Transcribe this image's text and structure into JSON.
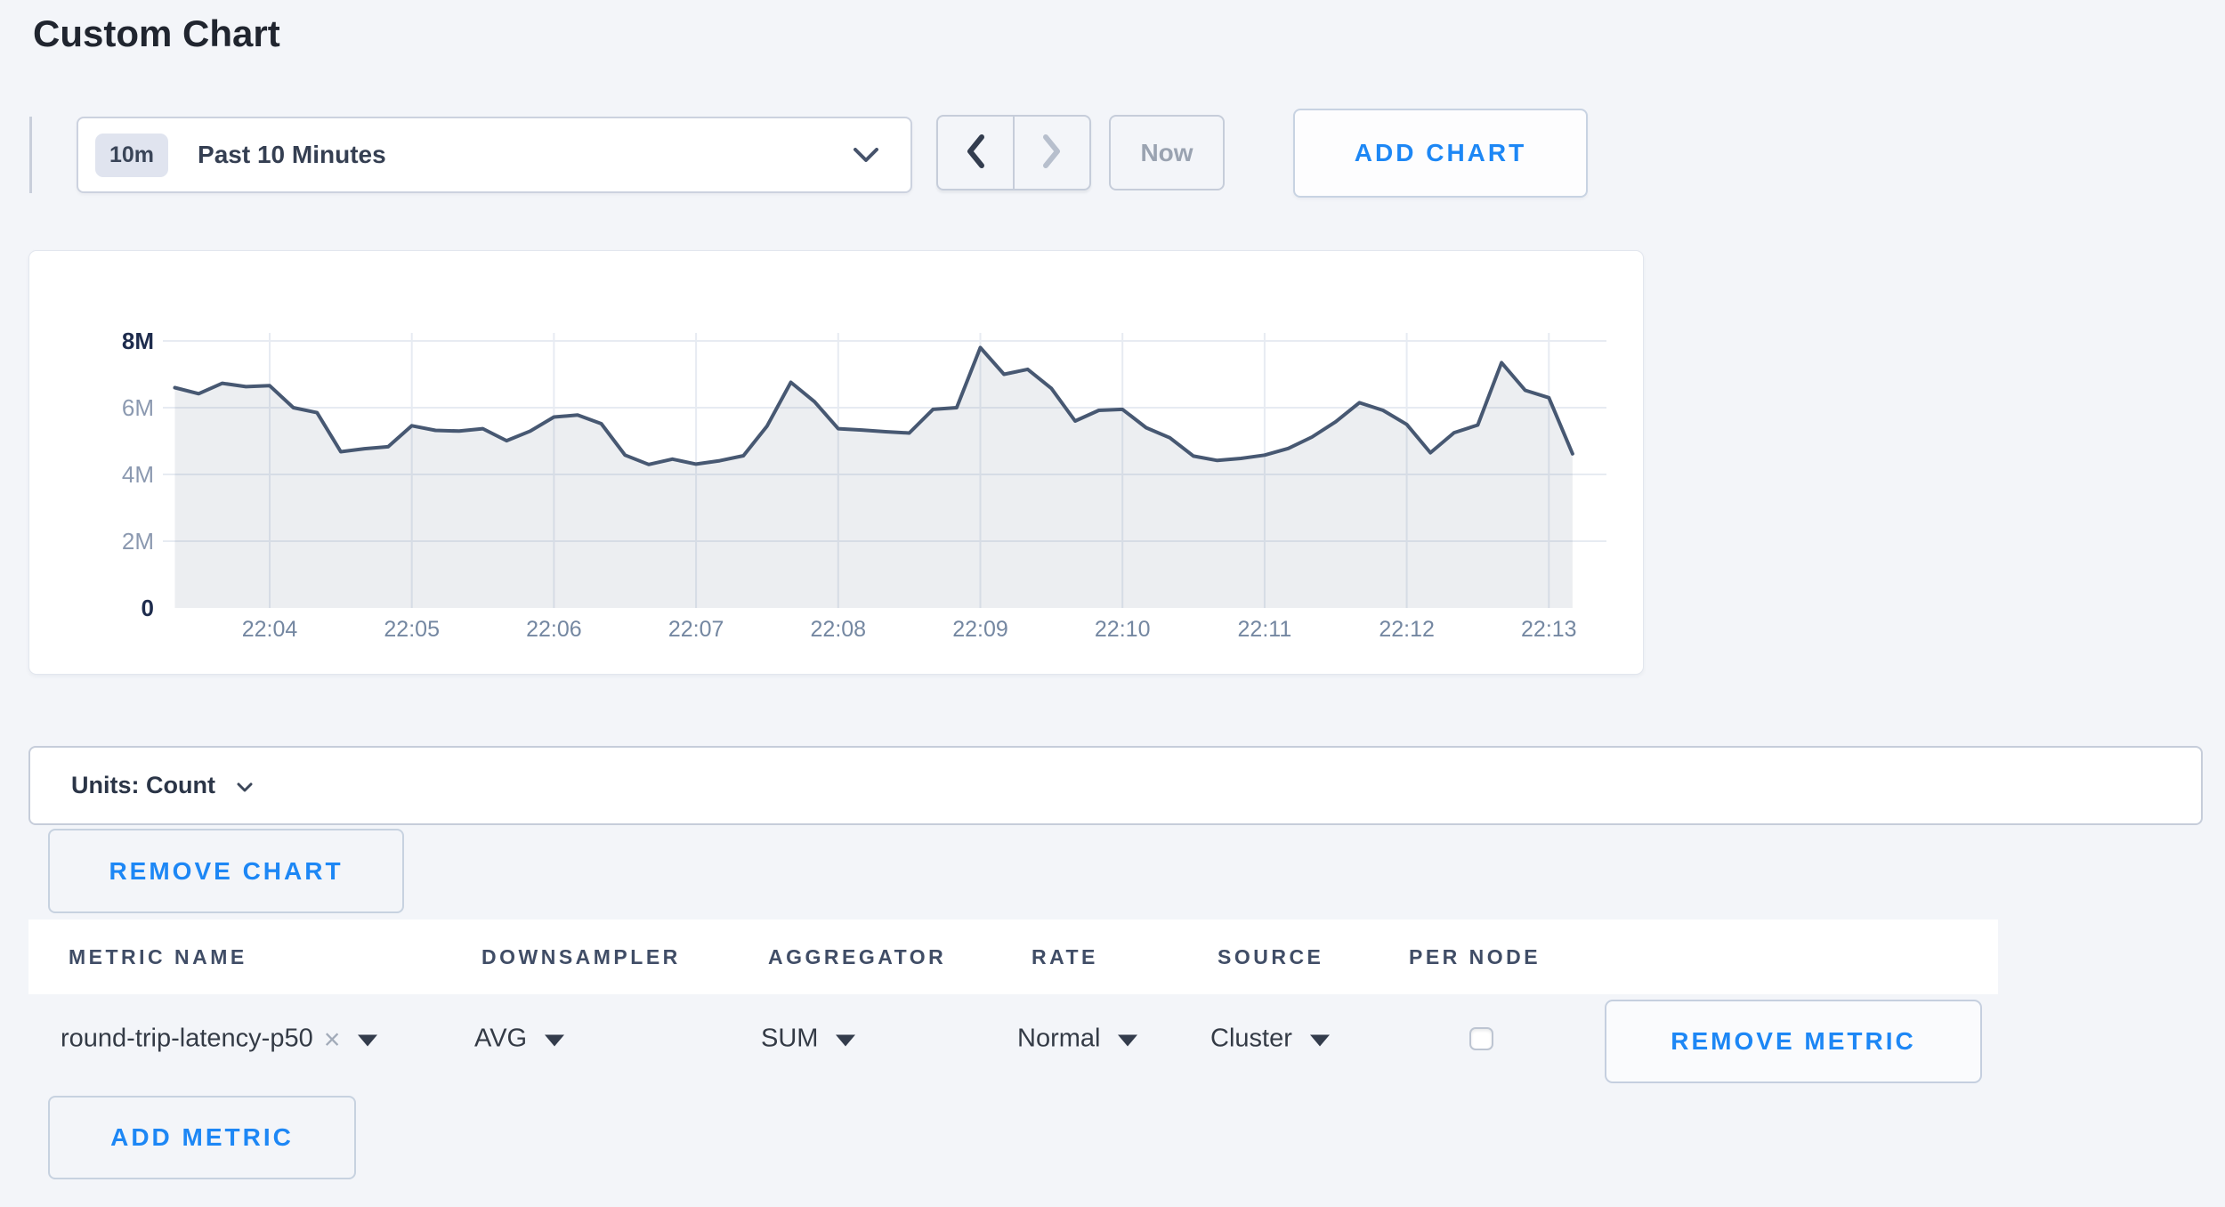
{
  "page": {
    "title": "Custom Chart"
  },
  "toolbar": {
    "time_window_badge": "10m",
    "time_window_label": "Past 10 Minutes",
    "now_label": "Now",
    "add_chart_label": "ADD CHART"
  },
  "units_bar": {
    "label": "Units: Count"
  },
  "chart_card": {
    "remove_chart_label": "REMOVE CHART"
  },
  "metrics_table": {
    "columns": [
      "METRIC NAME",
      "DOWNSAMPLER",
      "AGGREGATOR",
      "RATE",
      "SOURCE",
      "PER NODE"
    ],
    "rows": [
      {
        "metric_name": "round-trip-latency-p50",
        "remove_tag": "×",
        "downsampler": "AVG",
        "aggregator": "SUM",
        "rate": "Normal",
        "source": "Cluster",
        "per_node_checked": false,
        "remove_metric_label": "REMOVE METRIC"
      }
    ],
    "add_metric_label": "ADD METRIC"
  },
  "chart_data": {
    "type": "area",
    "title": "",
    "xlabel": "",
    "ylabel": "",
    "unit": "Count",
    "x_start": "22:03:20",
    "x_interval_seconds": 10,
    "x_ticks": [
      "22:04",
      "22:05",
      "22:06",
      "22:07",
      "22:08",
      "22:09",
      "22:10",
      "22:11",
      "22:12",
      "22:13"
    ],
    "y_ticks": [
      "0",
      "2M",
      "4M",
      "6M",
      "8M"
    ],
    "ylim": [
      0,
      8000000
    ],
    "grid": true,
    "legend_position": "none",
    "line_color": "#475872",
    "fill_color": "rgba(71,88,114,0.10)",
    "series": [
      {
        "name": "round-trip-latency-p50",
        "values_millions": [
          6.6,
          6.42,
          6.73,
          6.63,
          6.66,
          6.0,
          5.85,
          4.68,
          4.77,
          4.83,
          5.46,
          5.32,
          5.3,
          5.37,
          5.01,
          5.3,
          5.72,
          5.78,
          5.52,
          4.58,
          4.3,
          4.46,
          4.31,
          4.41,
          4.56,
          5.45,
          6.76,
          6.18,
          5.37,
          5.33,
          5.28,
          5.24,
          5.95,
          6.0,
          7.8,
          7.0,
          7.15,
          6.58,
          5.6,
          5.92,
          5.95,
          5.4,
          5.1,
          4.55,
          4.42,
          4.48,
          4.58,
          4.78,
          5.12,
          5.58,
          6.15,
          5.92,
          5.5,
          4.65,
          5.25,
          5.48,
          7.35,
          6.52,
          6.3,
          4.62
        ]
      }
    ]
  }
}
